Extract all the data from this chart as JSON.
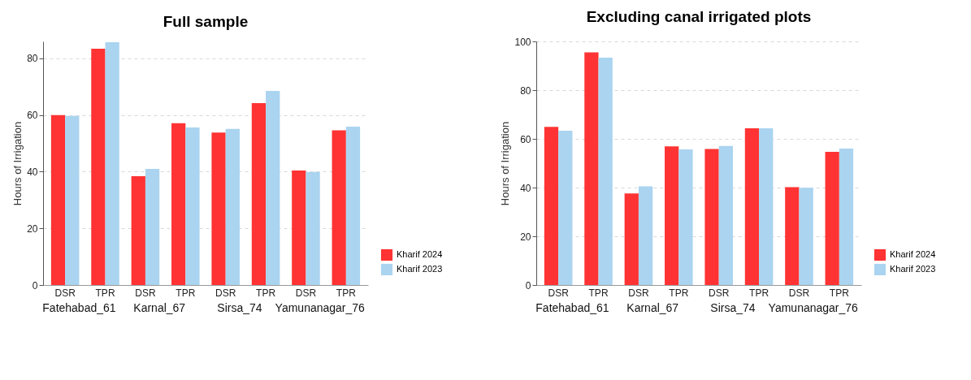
{
  "chart_data": [
    {
      "type": "bar",
      "title": "Full sample",
      "ylabel": "Hours of Irrigation",
      "categories": [
        "DSR",
        "TPR",
        "DSR",
        "TPR",
        "DSR",
        "TPR",
        "DSR",
        "TPR"
      ],
      "annotations": [
        "Fatehabad_61",
        "Karnal_67",
        "Sirsa_74",
        "Yamunanagar_76"
      ],
      "ylim": [
        0,
        86
      ],
      "yticks": [
        0,
        20,
        40,
        60,
        80
      ],
      "grid": "y",
      "legend": "bottom right",
      "series": [
        {
          "name": "Kharif 2024",
          "color": "#ff3333",
          "values": [
            60.0,
            83.4,
            38.4,
            57.1,
            53.8,
            64.2,
            40.4,
            54.6
          ]
        },
        {
          "name": "Kharif 2023",
          "color": "#aad4f0",
          "values": [
            59.7,
            85.7,
            41.0,
            55.6,
            55.1,
            68.5,
            39.9,
            55.9
          ]
        }
      ]
    },
    {
      "type": "bar",
      "title": "Excluding canal irrigated plots",
      "ylabel": "Hours of Irrigation",
      "categories": [
        "DSR",
        "TPR",
        "DSR",
        "TPR",
        "DSR",
        "TPR",
        "DSR",
        "TPR"
      ],
      "annotations": [
        "Fatehabad_61",
        "Karnal_67",
        "Sirsa_74",
        "Yamunanagar_76"
      ],
      "ylim": [
        0,
        100
      ],
      "yticks": [
        0,
        20,
        40,
        60,
        80,
        100
      ],
      "grid": "y",
      "legend": "bottom right",
      "series": [
        {
          "name": "Kharif 2024",
          "color": "#ff3333",
          "values": [
            64.9,
            95.5,
            37.6,
            56.9,
            55.8,
            64.3,
            40.2,
            54.7
          ]
        },
        {
          "name": "Kharif 2023",
          "color": "#aad4f0",
          "values": [
            63.3,
            93.3,
            40.5,
            55.7,
            57.1,
            64.3,
            39.9,
            56.0
          ]
        }
      ]
    }
  ]
}
